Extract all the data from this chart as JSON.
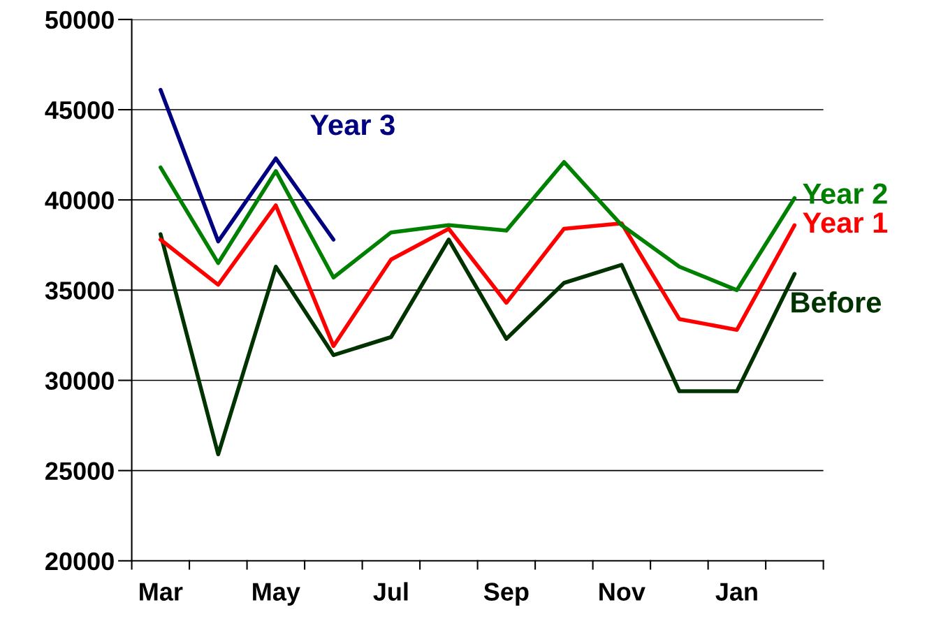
{
  "chart_data": {
    "type": "line",
    "categories": [
      "Mar",
      null,
      "May",
      null,
      "Jul",
      null,
      "Sep",
      null,
      "Nov",
      null,
      "Jan",
      null
    ],
    "series": [
      {
        "name": "Before",
        "color": "#003300",
        "values": [
          38100,
          25900,
          36300,
          31400,
          32400,
          37800,
          32300,
          35400,
          36400,
          29400,
          29400,
          35900
        ]
      },
      {
        "name": "Year 1",
        "color": "#ff0000",
        "values": [
          37800,
          35300,
          39700,
          31900,
          36700,
          38400,
          34300,
          38400,
          38700,
          33400,
          32800,
          38600
        ]
      },
      {
        "name": "Year 2",
        "color": "#008000",
        "values": [
          41800,
          36500,
          41600,
          35700,
          38200,
          38600,
          38300,
          42100,
          38600,
          36300,
          35000,
          40100
        ]
      },
      {
        "name": "Year 3",
        "color": "#000080",
        "values": [
          46100,
          37700,
          42300,
          37800,
          null,
          null,
          null,
          null,
          null,
          null,
          null,
          null
        ]
      }
    ],
    "ylim": [
      20000,
      50000
    ],
    "yticks": [
      20000,
      25000,
      30000,
      35000,
      40000,
      45000,
      50000
    ],
    "grid": "y",
    "legend": false,
    "marker": "none",
    "line_style": "solid"
  }
}
